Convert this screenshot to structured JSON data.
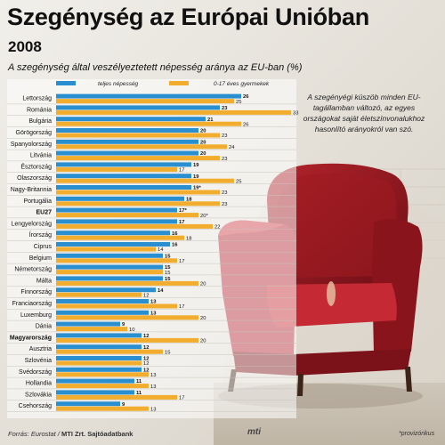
{
  "header": {
    "title": "Szegénység az Európai Unióban",
    "year": "2008",
    "subtitle": "A szegénység által veszélyeztetett népesség aránya az EU-ban (%)"
  },
  "note": "A szegényégi küszöb minden EU-tagállamban változó, az egyes országokat saját életszínvonalukhoz hasonlító arányokról van szó.",
  "footer": {
    "source_label": "Forrás: Eurostat / ",
    "source_bold": "MTI Zrt. Sajtóadatbank",
    "logo": "mti",
    "credit": "*provizórikus"
  },
  "colors": {
    "total": "#2a8fd0",
    "children": "#f2ad2e",
    "background": "#e9e7e2"
  },
  "chart_data": {
    "type": "bar",
    "orientation": "horizontal",
    "title": "A szegénység által veszélyeztetett népesség aránya az EU-ban (%)",
    "categories": [
      "Lettország",
      "Románia",
      "Bulgária",
      "Görögország",
      "Spanyolország",
      "Litvánia",
      "Észtország",
      "Olaszország",
      "Nagy-Britannia",
      "Portugália",
      "EU27",
      "Lengyelország",
      "Írország",
      "Ciprus",
      "Belgium",
      "Németország",
      "Málta",
      "Finnország",
      "Franciaország",
      "Luxemburg",
      "Dánia",
      "Magyarország",
      "Ausztria",
      "Szlovénia",
      "Svédország",
      "Hollandia",
      "Szlovákia",
      "Csehország"
    ],
    "bold_categories": [
      "EU27",
      "Magyarország"
    ],
    "series": [
      {
        "name": "teljes népesség",
        "values": [
          26,
          23,
          21,
          20,
          20,
          20,
          19,
          19,
          19,
          18,
          17,
          17,
          16,
          16,
          15,
          15,
          15,
          14,
          13,
          13,
          9,
          12,
          12,
          12,
          12,
          11,
          11,
          9
        ],
        "labels": [
          "26",
          "23",
          "21",
          "20",
          "20",
          "20",
          "19",
          "19",
          "19*",
          "18",
          "17*",
          "17",
          "16",
          "16",
          "15",
          "15",
          "15",
          "14",
          "13",
          "13",
          "9",
          "12",
          "12",
          "12",
          "12",
          "11",
          "11",
          "9"
        ]
      },
      {
        "name": "0-17 éves gyermekek",
        "values": [
          25,
          33,
          26,
          23,
          24,
          23,
          17,
          25,
          23,
          23,
          20,
          22,
          18,
          14,
          17,
          15,
          20,
          12,
          17,
          20,
          10,
          20,
          15,
          12,
          13,
          13,
          17,
          13
        ],
        "labels": [
          "25",
          "33",
          "26",
          "23",
          "24",
          "23",
          "17",
          "25",
          "23",
          "23",
          "20*",
          "22",
          "18",
          "14",
          "17",
          "15",
          "20",
          "12",
          "17",
          "20",
          "10",
          "20",
          "15",
          "12",
          "13",
          "13",
          "17",
          "13"
        ]
      }
    ],
    "xlim": [
      0,
      33
    ]
  }
}
